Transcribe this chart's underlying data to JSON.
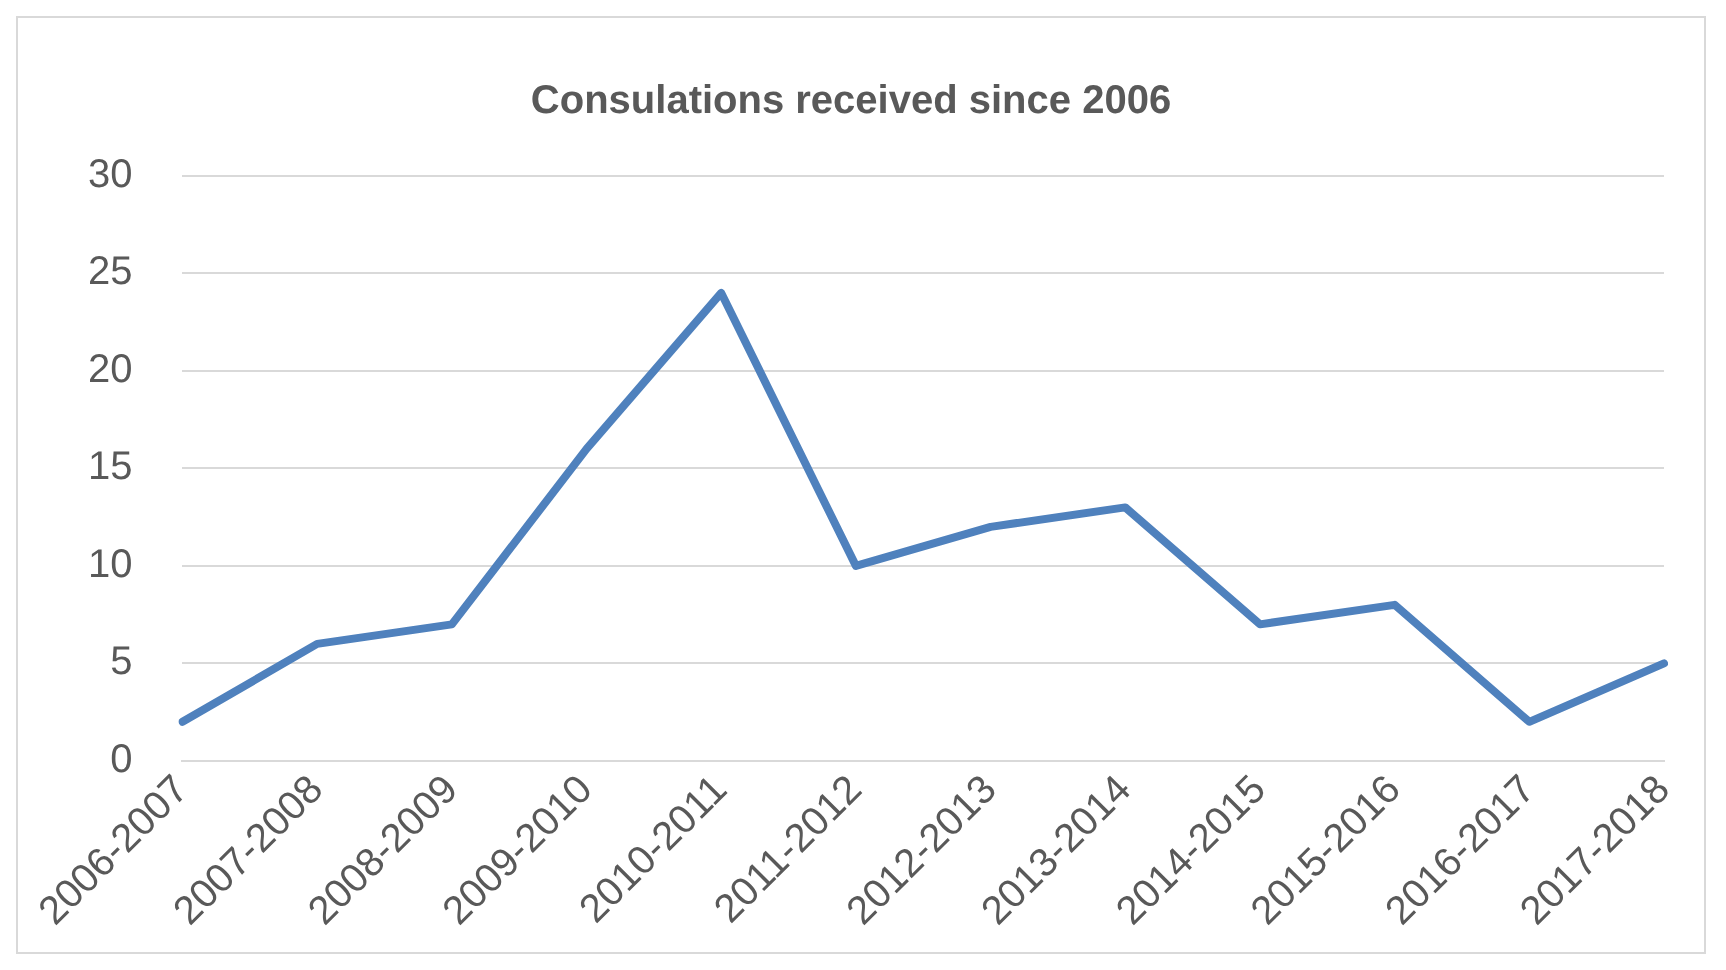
{
  "chart_data": {
    "type": "line",
    "title": "Consulations received since 2006",
    "categories": [
      "2006-2007",
      "2007-2008",
      "2008-2009",
      "2009-2010",
      "2010-2011",
      "2011-2012",
      "2012-2013",
      "2013-2014",
      "2014-2015",
      "2015-2016",
      "2016-2017",
      "2017-2018"
    ],
    "series": [
      {
        "color": "#4f81bd",
        "values": [
          2,
          6,
          7,
          16,
          24,
          10,
          12,
          13,
          7,
          8,
          2,
          5
        ]
      }
    ],
    "ylim": [
      0,
      30
    ],
    "yticks": [
      0,
      5,
      10,
      15,
      20,
      25,
      30
    ],
    "grid": "y",
    "legend": false,
    "marker": "none",
    "line_style": "solid"
  }
}
